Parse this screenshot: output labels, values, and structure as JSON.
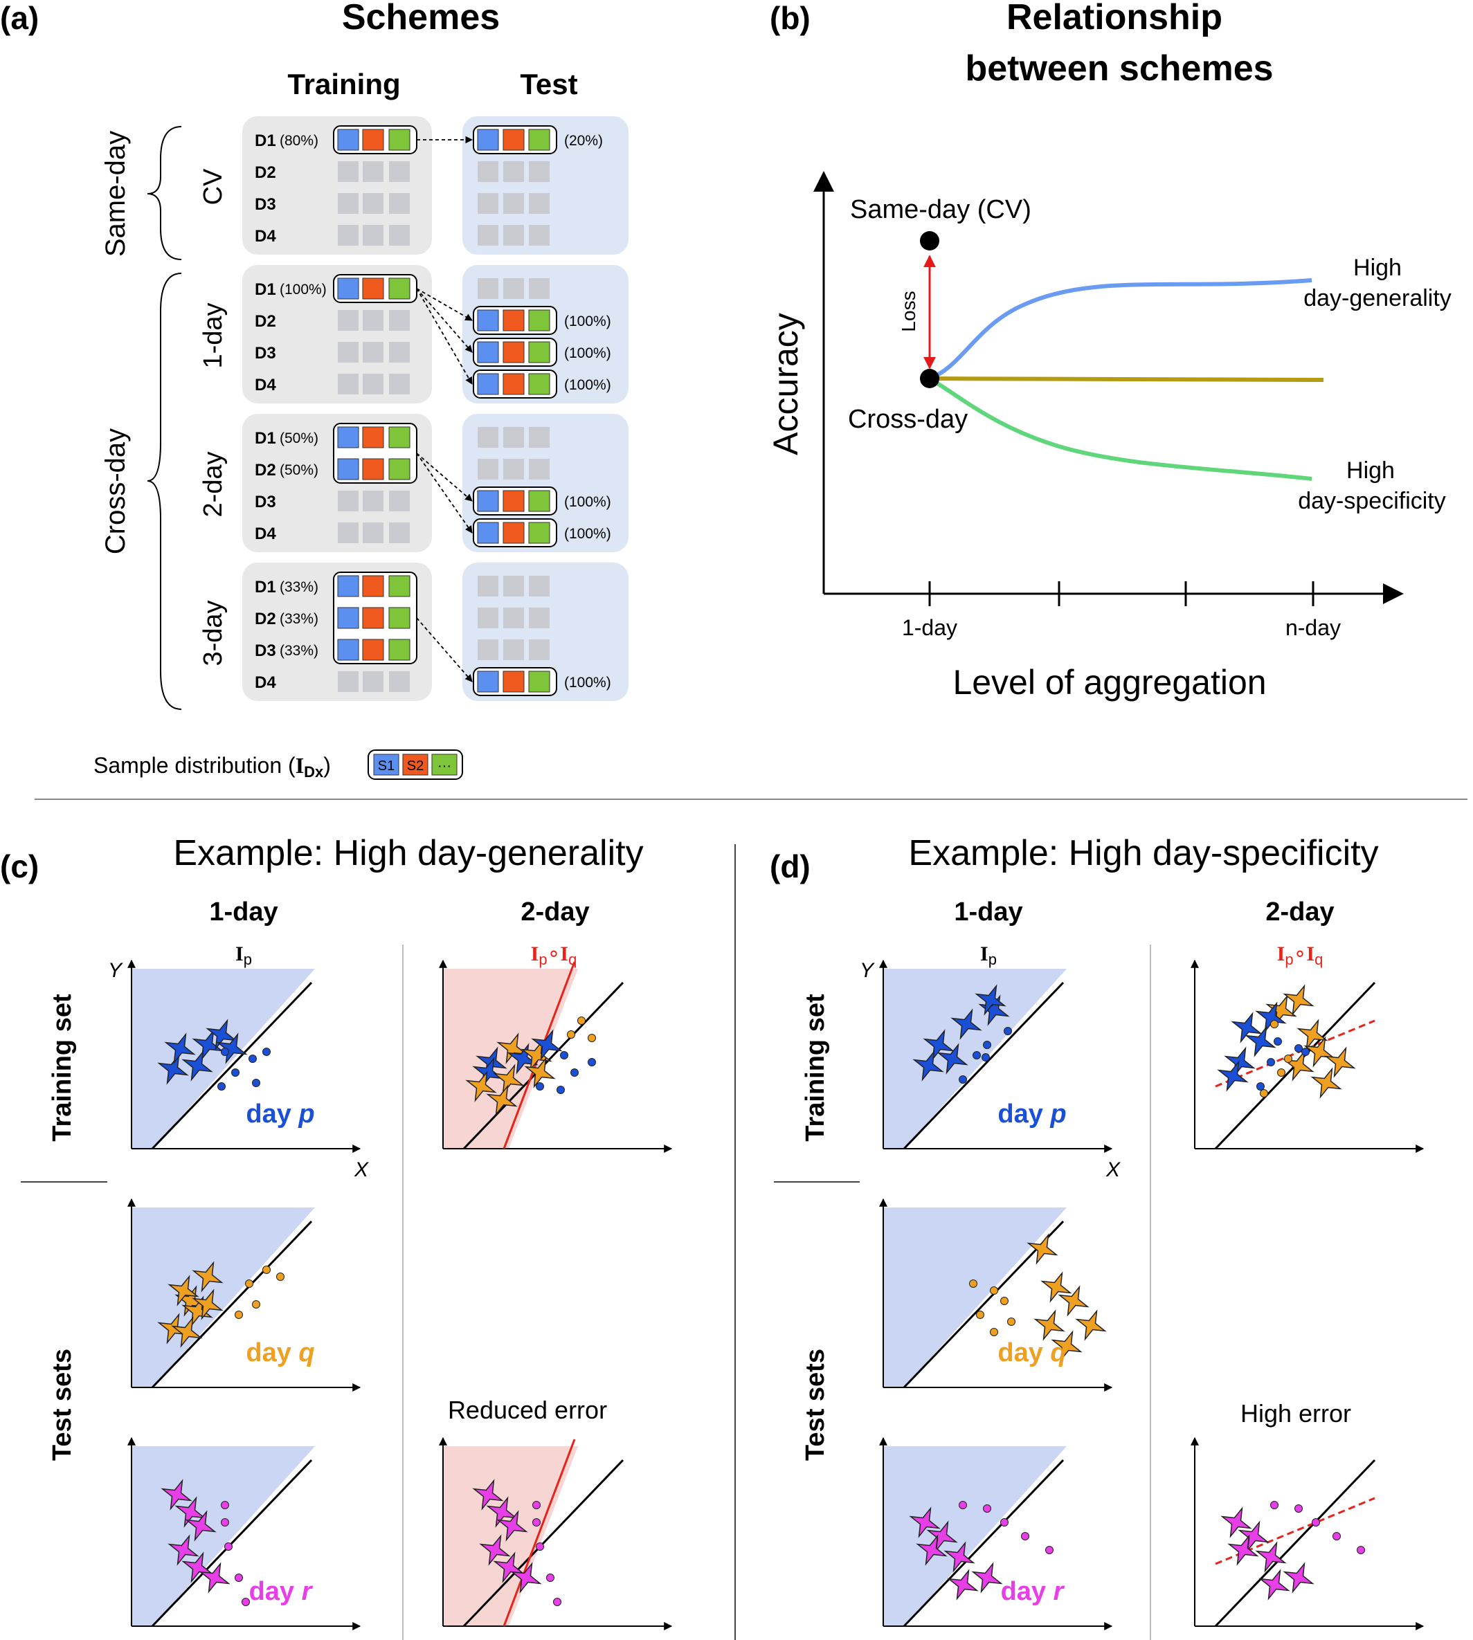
{
  "colors": {
    "s1": "#5b8ff0",
    "s2": "#f05a1e",
    "s3": "#7ec53a",
    "empty_cell": "#c9cbd1",
    "train_panel": "#e8e8e8",
    "test_panel": "#dde6f4",
    "generality_line": "#6a9bf2",
    "flat_line": "#b39b12",
    "specificity_line": "#5fd67a",
    "loss_arrow": "#e41a1a",
    "blue_region": "#cbd6f5",
    "red_region": "#f7d5d3",
    "day_p": "#1a4fd6",
    "day_q": "#f0a020",
    "day_r": "#e83ee8",
    "fit_line": "#e8231a"
  },
  "panel_a": {
    "label": "(a)",
    "title": "Schemes",
    "training_header": "Training",
    "test_header": "Test",
    "group_same_day": "Same-day",
    "group_cross_day": "Cross-day",
    "blocks": [
      {
        "name": "CV",
        "rows": [
          {
            "day": "D1",
            "train_pct": "(80%)",
            "train_on": true,
            "test_pct": "(20%)",
            "test_on": true
          },
          {
            "day": "D2",
            "train_pct": "",
            "train_on": false,
            "test_pct": "",
            "test_on": false
          },
          {
            "day": "D3",
            "train_pct": "",
            "train_on": false,
            "test_pct": "",
            "test_on": false
          },
          {
            "day": "D4",
            "train_pct": "",
            "train_on": false,
            "test_pct": "",
            "test_on": false
          }
        ]
      },
      {
        "name": "1-day",
        "rows": [
          {
            "day": "D1",
            "train_pct": "(100%)",
            "train_on": true,
            "test_pct": "",
            "test_on": false
          },
          {
            "day": "D2",
            "train_pct": "",
            "train_on": false,
            "test_pct": "(100%)",
            "test_on": true
          },
          {
            "day": "D3",
            "train_pct": "",
            "train_on": false,
            "test_pct": "(100%)",
            "test_on": true
          },
          {
            "day": "D4",
            "train_pct": "",
            "train_on": false,
            "test_pct": "(100%)",
            "test_on": true
          }
        ]
      },
      {
        "name": "2-day",
        "rows": [
          {
            "day": "D1",
            "train_pct": "(50%)",
            "train_on": true,
            "test_pct": "",
            "test_on": false
          },
          {
            "day": "D2",
            "train_pct": "(50%)",
            "train_on": true,
            "test_pct": "",
            "test_on": false
          },
          {
            "day": "D3",
            "train_pct": "",
            "train_on": false,
            "test_pct": "(100%)",
            "test_on": true
          },
          {
            "day": "D4",
            "train_pct": "",
            "train_on": false,
            "test_pct": "(100%)",
            "test_on": true
          }
        ]
      },
      {
        "name": "3-day",
        "rows": [
          {
            "day": "D1",
            "train_pct": "(33%)",
            "train_on": true,
            "test_pct": "",
            "test_on": false
          },
          {
            "day": "D2",
            "train_pct": "(33%)",
            "train_on": true,
            "test_pct": "",
            "test_on": false
          },
          {
            "day": "D3",
            "train_pct": "(33%)",
            "train_on": true,
            "test_pct": "",
            "test_on": false
          },
          {
            "day": "D4",
            "train_pct": "",
            "train_on": false,
            "test_pct": "(100%)",
            "test_on": true
          }
        ]
      }
    ],
    "legend_text": "Sample distribution (",
    "legend_symbol": "I",
    "legend_subscript": "Dx",
    "legend_close": ")",
    "legend_cells": [
      "S1",
      "S2",
      "···"
    ]
  },
  "panel_b": {
    "label": "(b)",
    "title_line1": "Relationship",
    "title_line2": "between schemes",
    "y_label": "Accuracy",
    "x_label": "Level of aggregation",
    "x_ticks": [
      "1-day",
      "n-day"
    ],
    "same_day_label": "Same-day (CV)",
    "cross_day_label": "Cross-day",
    "loss_label": "Loss",
    "generality_label_1": "High",
    "generality_label_2": "day-generality",
    "specificity_label_1": "High",
    "specificity_label_2": "day-specificity"
  },
  "panel_c": {
    "label": "(c)",
    "title": "Example: High day-generality",
    "col1": "1-day",
    "col2": "2-day",
    "formula_1day_base": "I",
    "formula_1day_sub": "p",
    "formula_2day_base1": "I",
    "formula_2day_sub1": "p",
    "formula_2day_op": "∘",
    "formula_2day_base2": "I",
    "formula_2day_sub2": "q",
    "row_training": "Training set",
    "row_test": "Test sets",
    "axis_y": "Y",
    "axis_x": "X",
    "day_p_word": "day",
    "day_p_letter": "p",
    "day_q_word": "day",
    "day_q_letter": "q",
    "day_r_word": "day",
    "day_r_letter": "r",
    "error_text": "Reduced error"
  },
  "panel_d": {
    "label": "(d)",
    "title": "Example: High day-specificity",
    "col1": "1-day",
    "col2": "2-day",
    "formula_1day_base": "I",
    "formula_1day_sub": "p",
    "formula_2day_base1": "I",
    "formula_2day_sub1": "p",
    "formula_2day_op": "∘",
    "formula_2day_base2": "I",
    "formula_2day_sub2": "q",
    "row_training": "Training set",
    "row_test": "Test sets",
    "axis_y": "Y",
    "axis_x": "X",
    "day_p_word": "day",
    "day_p_letter": "p",
    "day_q_word": "day",
    "day_q_letter": "q",
    "day_r_word": "day",
    "day_r_letter": "r",
    "error_text": "High error"
  }
}
